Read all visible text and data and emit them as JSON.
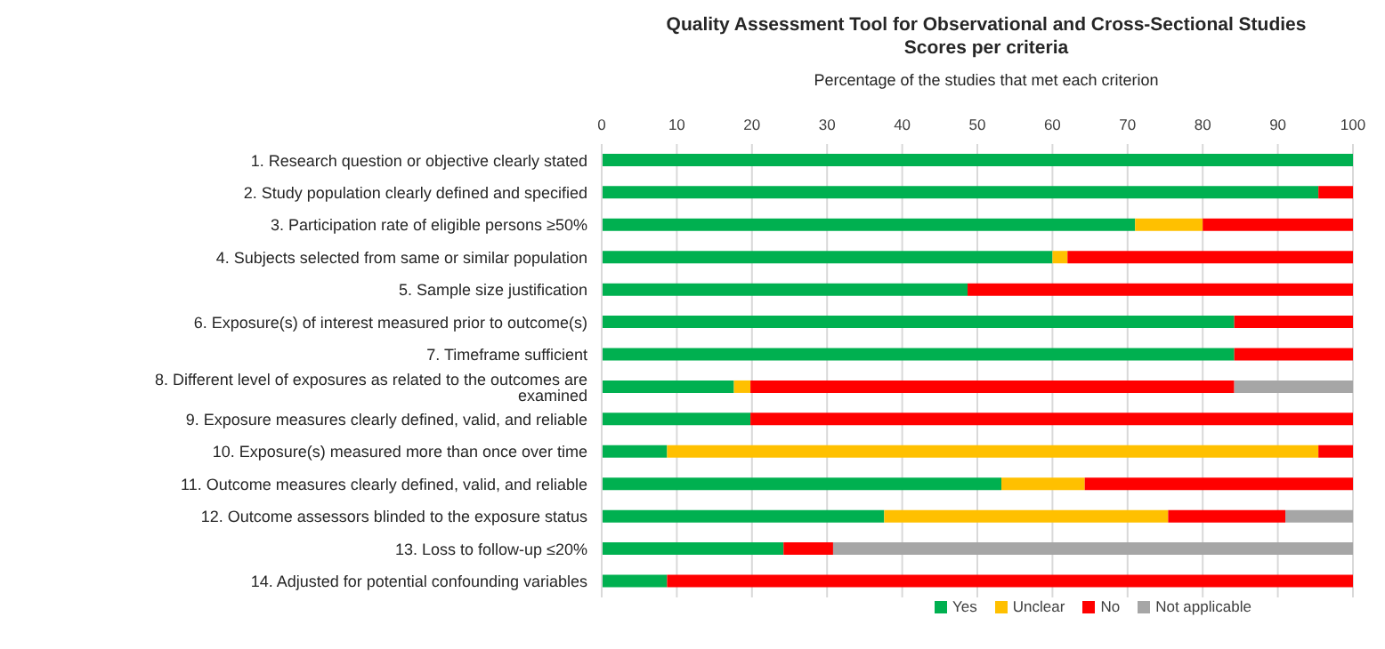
{
  "chart_data": {
    "type": "bar",
    "orientation": "horizontal",
    "stacked": true,
    "title": "Quality Assessment Tool for Observational and Cross-Sectional Studies",
    "subtitle": "Scores per criteria",
    "xlabel": "Percentage of the studies that met each criterion",
    "categories": [
      "1. Research question or objective clearly stated",
      "2. Study population clearly defined and specified",
      "3. Participation rate of eligible persons ≥50%",
      "4. Subjects selected from same or similar population",
      "5. Sample size justification",
      "6. Exposure(s) of interest measured prior to outcome(s)",
      "7. Timeframe sufficient",
      "8. Different level of exposures as related to the outcomes are examined",
      "9. Exposure measures clearly defined, valid, and reliable",
      "10. Exposure(s) measured more than once over time",
      "11. Outcome measures clearly defined, valid, and reliable",
      "12. Outcome assessors blinded to the exposure status",
      "13. Loss to follow-up ≤20%",
      "14. Adjusted for potential confounding variables"
    ],
    "series": [
      {
        "name": "Yes",
        "color": "#00b050",
        "values": [
          100,
          95.4,
          71,
          60,
          48.7,
          84.2,
          84.2,
          17.6,
          19.8,
          8.7,
          53.2,
          37.6,
          24.2,
          8.7
        ]
      },
      {
        "name": "Unclear",
        "color": "#ffc000",
        "values": [
          0,
          0,
          9,
          2,
          0,
          0,
          0,
          2.2,
          0,
          86.7,
          11.1,
          37.8,
          0,
          0
        ]
      },
      {
        "name": "No",
        "color": "#ff0000",
        "values": [
          0,
          4.6,
          20,
          38,
          51.3,
          15.8,
          15.8,
          64.4,
          80.2,
          4.6,
          35.7,
          15.6,
          6.6,
          91.3
        ]
      },
      {
        "name": "Not applicable",
        "color": "#a6a6a6",
        "values": [
          0,
          0,
          0,
          0,
          0,
          0,
          0,
          15.8,
          0,
          0,
          0,
          9,
          69.2,
          0
        ]
      }
    ],
    "xlim": [
      0,
      100
    ],
    "xticks": [
      0,
      10,
      20,
      30,
      40,
      50,
      60,
      70,
      80,
      90,
      100
    ],
    "grid": "x",
    "legend": "bottom"
  }
}
